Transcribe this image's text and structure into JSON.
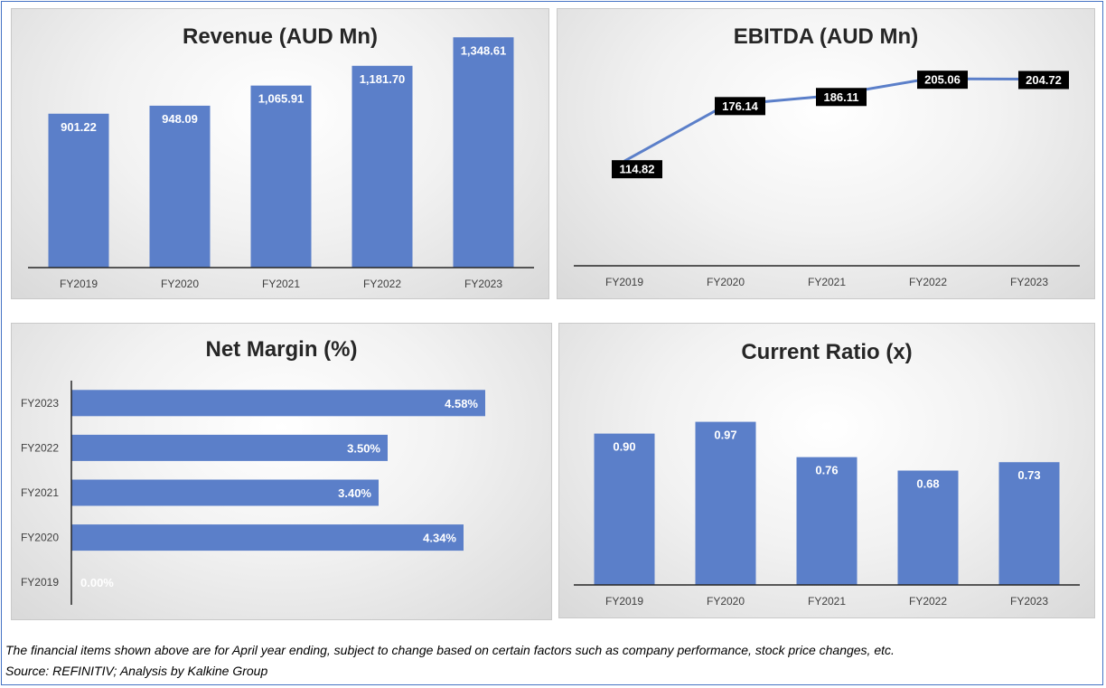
{
  "colors": {
    "bar": "#5b7fc9",
    "axis": "#262626",
    "label_box": "#000000"
  },
  "chart_data": [
    {
      "id": "revenue",
      "type": "bar",
      "title": "Revenue (AUD Mn)",
      "categories": [
        "FY2019",
        "FY2020",
        "FY2021",
        "FY2022",
        "FY2023"
      ],
      "values": [
        901.22,
        948.09,
        1065.91,
        1181.7,
        1348.61
      ],
      "data_labels": [
        "901.22",
        "948.09",
        "1,065.91",
        "1,181.70",
        "1,348.61"
      ],
      "ylim": [
        0,
        1440
      ]
    },
    {
      "id": "ebitda",
      "type": "line",
      "title": "EBITDA (AUD Mn)",
      "categories": [
        "FY2019",
        "FY2020",
        "FY2021",
        "FY2022",
        "FY2023"
      ],
      "values": [
        114.82,
        176.14,
        186.11,
        205.06,
        204.72
      ],
      "data_labels": [
        "114.82",
        "176.14",
        "186.11",
        "205.06",
        "204.72"
      ],
      "ylim": [
        0,
        230
      ]
    },
    {
      "id": "net-margin",
      "type": "bar",
      "orientation": "horizontal",
      "title": "Net Margin (%)",
      "categories": [
        "FY2019",
        "FY2020",
        "FY2021",
        "FY2022",
        "FY2023"
      ],
      "values": [
        0.0,
        4.34,
        3.4,
        3.5,
        4.58
      ],
      "data_labels": [
        "0.00%",
        "4.34%",
        "3.40%",
        "3.50%",
        "4.58%"
      ],
      "xlim": [
        0,
        5
      ]
    },
    {
      "id": "current-ratio",
      "type": "bar",
      "title": "Current Ratio (x)",
      "categories": [
        "FY2019",
        "FY2020",
        "FY2021",
        "FY2022",
        "FY2023"
      ],
      "values": [
        0.9,
        0.97,
        0.76,
        0.68,
        0.73
      ],
      "data_labels": [
        "0.90",
        "0.97",
        "0.76",
        "0.68",
        "0.73"
      ],
      "ylim": [
        0,
        1.0
      ]
    }
  ],
  "footer": {
    "note": "The financial items shown above are for April year ending, subject to change based on certain factors such as company performance, stock price changes, etc.",
    "source": "Source: REFINITIV; Analysis by Kalkine Group"
  }
}
